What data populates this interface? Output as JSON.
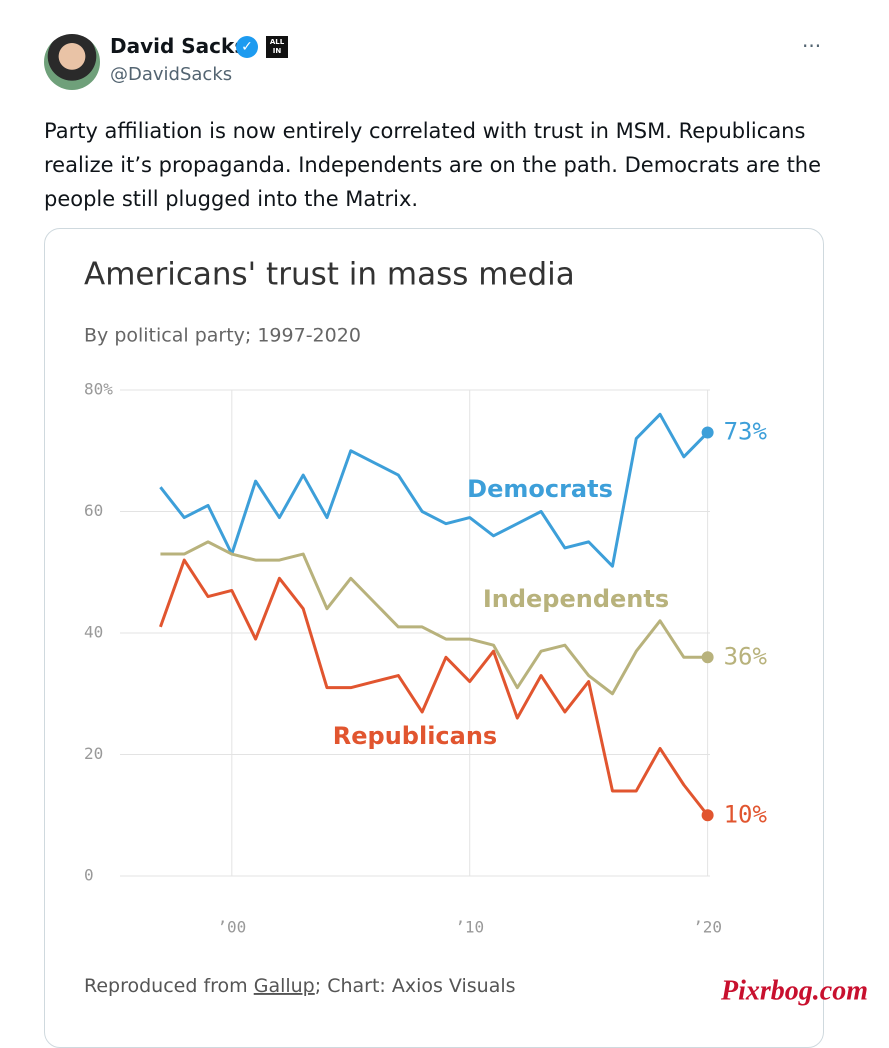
{
  "tweet": {
    "name": "David Sacks",
    "handle": "@DavidSacks",
    "badge": "ALL IN",
    "text": "Party affiliation is now entirely correlated with trust in MSM. Republicans realize it’s propaganda. Independents are on the path. Democrats are the people still plugged into the Matrix."
  },
  "chart_data": {
    "type": "line",
    "title": "Americans' trust in mass media",
    "subtitle": "By political party; 1997-2020",
    "x": [
      1997,
      1998,
      1999,
      2000,
      2001,
      2002,
      2003,
      2004,
      2005,
      2006,
      2007,
      2008,
      2009,
      2010,
      2011,
      2012,
      2013,
      2014,
      2015,
      2016,
      2017,
      2018,
      2019,
      2020
    ],
    "series": [
      {
        "name": "Democrats",
        "color": "#3d9fd9",
        "values": [
          64,
          59,
          61,
          53,
          65,
          59,
          66,
          59,
          70,
          68,
          66,
          60,
          58,
          59,
          56,
          58,
          60,
          54,
          55,
          51,
          72,
          76,
          69,
          73
        ],
        "value_labels": {
          "23": "73%"
        }
      },
      {
        "name": "Independents",
        "color": "#b8b27c",
        "values": [
          53,
          53,
          55,
          53,
          52,
          52,
          53,
          44,
          49,
          45,
          41,
          41,
          39,
          39,
          38,
          31,
          37,
          38,
          33,
          30,
          37,
          42,
          36,
          36
        ],
        "value_labels": {
          "23": "36%"
        }
      },
      {
        "name": "Republicans",
        "color": "#e1552f",
        "values": [
          41,
          52,
          46,
          47,
          39,
          49,
          44,
          31,
          31,
          32,
          33,
          27,
          36,
          32,
          37,
          26,
          33,
          27,
          32,
          14,
          14,
          21,
          15,
          10
        ],
        "value_labels": {
          "23": "10%"
        }
      }
    ],
    "xlim": [
      1995.3,
      2020.1
    ],
    "ylim": [
      0,
      80
    ],
    "xticks": [
      {
        "value": 2000,
        "label": "’00"
      },
      {
        "value": 2010,
        "label": "’10"
      },
      {
        "value": 2020,
        "label": "’20"
      }
    ],
    "yticks": [
      0,
      20,
      40,
      60,
      {
        "value": 80,
        "label": "80%"
      }
    ],
    "grid": true,
    "footer": {
      "prefix": "Reproduced from ",
      "link": "Gallup",
      "suffix": "; Chart: Axios Visuals"
    }
  },
  "watermark": "Pixrbog.com"
}
